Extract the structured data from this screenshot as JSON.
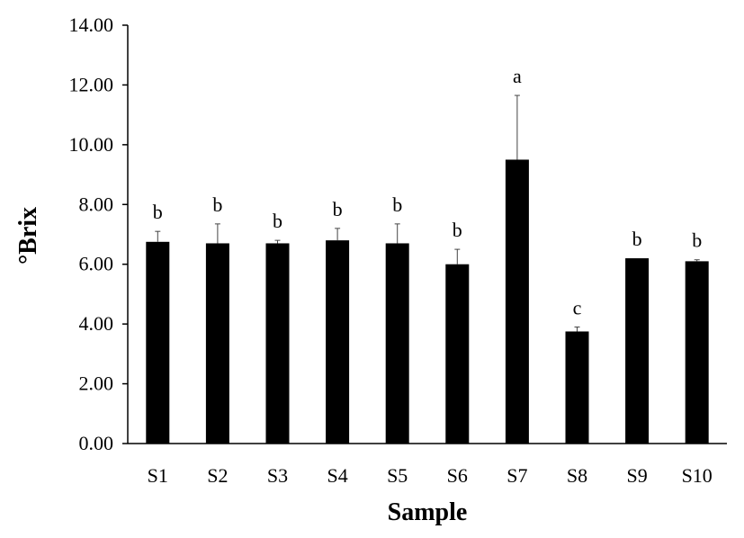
{
  "chart_data": {
    "type": "bar",
    "title": "",
    "xlabel": "Sample",
    "ylabel": "°Brix",
    "ylim": [
      0,
      14
    ],
    "yticks": [
      "0.00",
      "2.00",
      "4.00",
      "6.00",
      "8.00",
      "10.00",
      "12.00",
      "14.00"
    ],
    "categories": [
      "S1",
      "S2",
      "S3",
      "S4",
      "S5",
      "S6",
      "S7",
      "S8",
      "S9",
      "S10"
    ],
    "values": [
      6.75,
      6.7,
      6.7,
      6.8,
      6.7,
      6.0,
      9.5,
      3.75,
      6.2,
      6.1
    ],
    "errors": [
      0.35,
      0.65,
      0.1,
      0.4,
      0.65,
      0.5,
      2.15,
      0.15,
      0.0,
      0.05
    ],
    "significance_labels": [
      "b",
      "b",
      "b",
      "b",
      "b",
      "b",
      "a",
      "c",
      "b",
      "b"
    ],
    "bar_color": "#000000",
    "grid": false,
    "legend": "none"
  }
}
